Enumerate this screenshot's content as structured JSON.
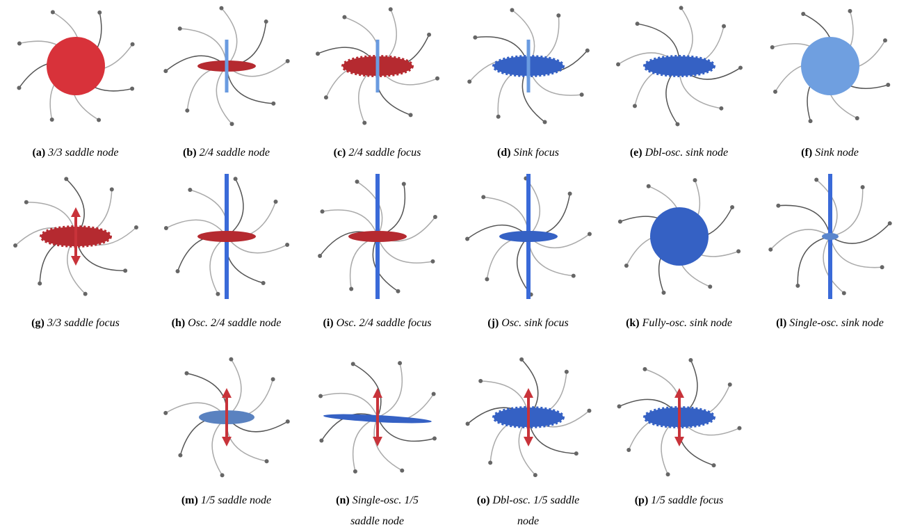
{
  "figure": {
    "panels": [
      {
        "label": "(a)",
        "caption": "3/3 saddle node"
      },
      {
        "label": "(b)",
        "caption": "2/4 saddle node"
      },
      {
        "label": "(c)",
        "caption": "2/4 saddle focus"
      },
      {
        "label": "(d)",
        "caption": "Sink focus"
      },
      {
        "label": "(e)",
        "caption": "Dbl-osc. sink node"
      },
      {
        "label": "(f)",
        "caption": "Sink node"
      },
      {
        "label": "(g)",
        "caption": "3/3 saddle focus"
      },
      {
        "label": "(h)",
        "caption": "Osc. 2/4 saddle node"
      },
      {
        "label": "(i)",
        "caption": "Osc. 2/4 saddle focus"
      },
      {
        "label": "(j)",
        "caption": "Osc. sink focus"
      },
      {
        "label": "(k)",
        "caption": "Fully-osc. sink node"
      },
      {
        "label": "(l)",
        "caption": "Single-osc. sink node"
      },
      {
        "label": "(m)",
        "caption": "1/5 saddle node"
      },
      {
        "label": "(n)",
        "caption": "Single-osc. 1/5 saddle node"
      },
      {
        "label": "(o)",
        "caption": "Dbl-osc. 1/5 saddle node"
      },
      {
        "label": "(p)",
        "caption": "1/5 saddle focus"
      }
    ]
  }
}
